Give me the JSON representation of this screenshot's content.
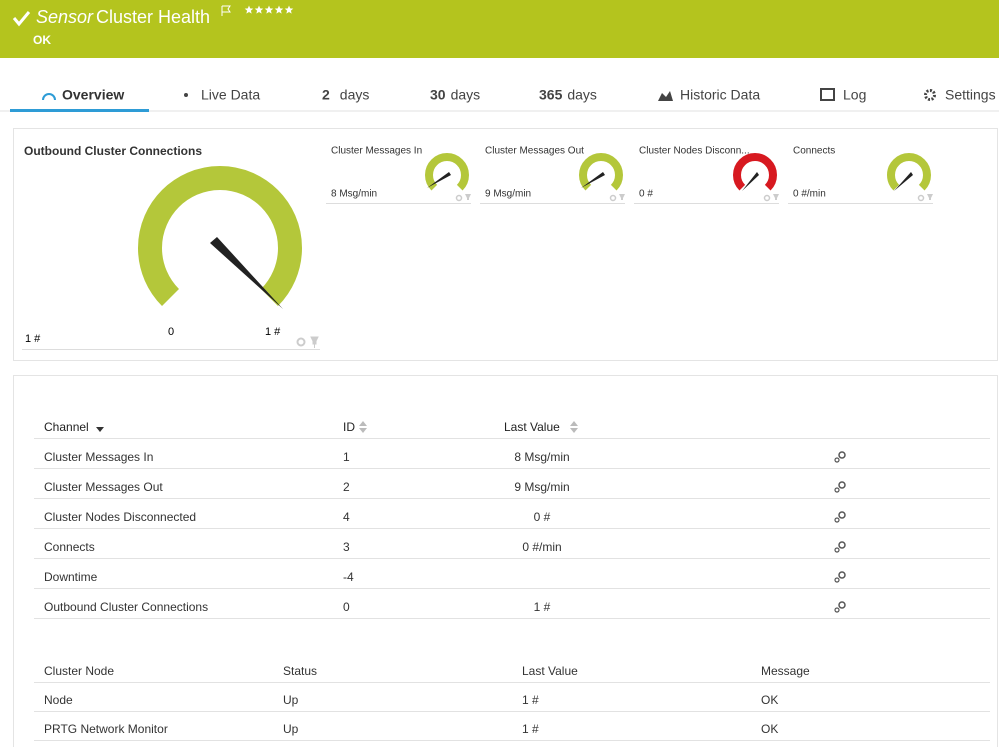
{
  "header": {
    "title_prefix": "Sensor",
    "title": "Cluster Health",
    "status": "OK"
  },
  "tabs": [
    {
      "label": "Overview"
    },
    {
      "label": "Live Data"
    },
    {
      "number": "2",
      "unit": "days"
    },
    {
      "number": "30",
      "unit": "days"
    },
    {
      "number": "365",
      "unit": "days"
    },
    {
      "label": "Historic Data"
    },
    {
      "label": "Log"
    },
    {
      "label": "Settings"
    }
  ],
  "main_gauge": {
    "title": "Outbound Cluster Connections",
    "value": "1 #",
    "min": "0",
    "max": "1 #"
  },
  "small_gauges": [
    {
      "title": "Cluster Messages In",
      "value": "8 Msg/min"
    },
    {
      "title": "Cluster Messages Out",
      "value": "9 Msg/min"
    },
    {
      "title": "Cluster Nodes Disconn...",
      "value": "0 #"
    },
    {
      "title": "Connects",
      "value": "0 #/min"
    }
  ],
  "channel_table": {
    "headers": [
      "Channel",
      "ID",
      "Last Value"
    ],
    "rows": [
      {
        "channel": "Cluster Messages In",
        "id": "1",
        "last_value": "8 Msg/min"
      },
      {
        "channel": "Cluster Messages Out",
        "id": "2",
        "last_value": "9 Msg/min"
      },
      {
        "channel": "Cluster Nodes Disconnected",
        "id": "4",
        "last_value": "0 #"
      },
      {
        "channel": "Connects",
        "id": "3",
        "last_value": "0 #/min"
      },
      {
        "channel": "Downtime",
        "id": "-4"
      },
      {
        "channel": "Outbound Cluster Connections",
        "id": "0",
        "last_value": "1 #"
      }
    ]
  },
  "node_table": {
    "headers": [
      "Cluster Node",
      "Status",
      "Last Value",
      "Message"
    ],
    "rows": [
      [
        "Node",
        "Up",
        "1 #",
        "OK"
      ],
      [
        "PRTG Network Monitor",
        "Up",
        "1 #",
        "OK"
      ]
    ]
  }
}
